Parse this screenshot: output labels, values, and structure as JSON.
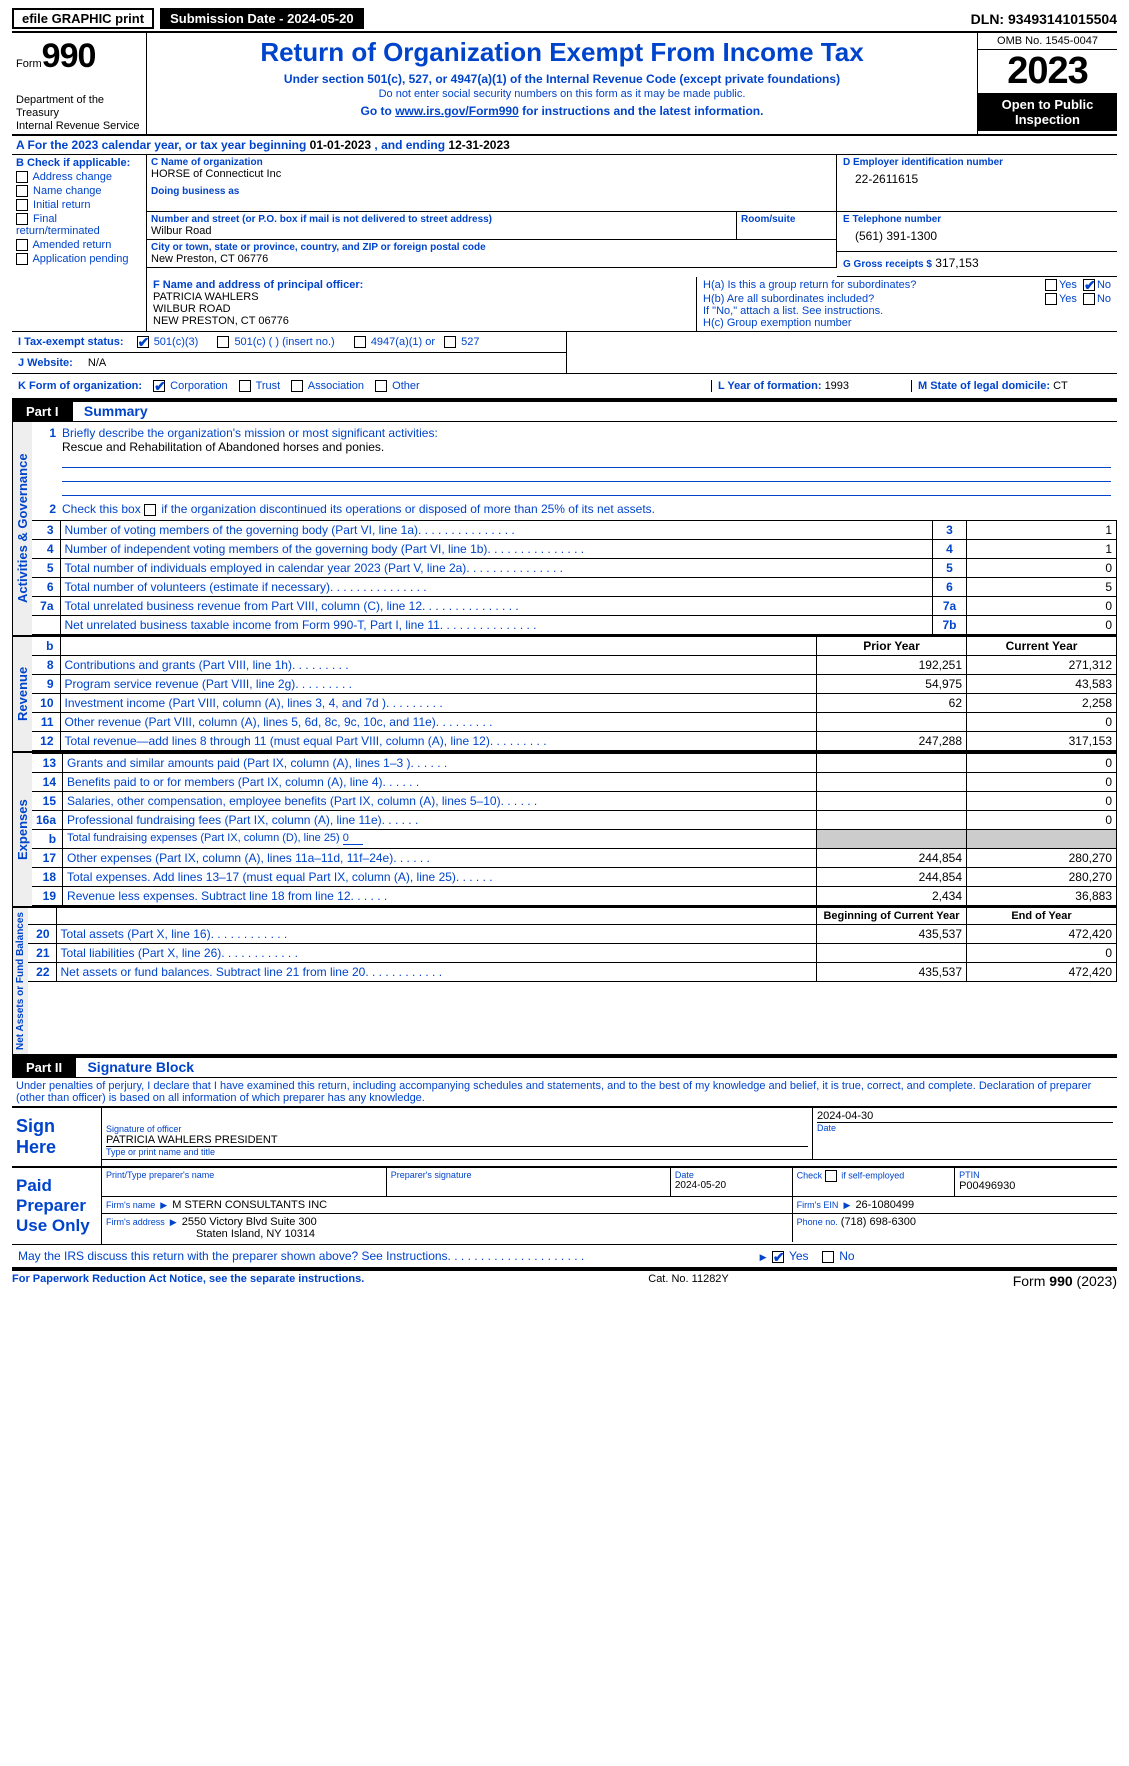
{
  "topbar": {
    "efile_label": "efile GRAPHIC print",
    "submission_label": "Submission Date - 2024-05-20",
    "dln_label": "DLN: 93493141015504"
  },
  "header": {
    "form_prefix": "Form",
    "form_no": "990",
    "dept": "Department of the Treasury\nInternal Revenue Service",
    "title": "Return of Organization Exempt From Income Tax",
    "sub": "Under section 501(c), 527, or 4947(a)(1) of the Internal Revenue Code (except private foundations)",
    "sub2": "Do not enter social security numbers on this form as it may be made public.",
    "go_prefix": "Go to ",
    "go_link": "www.irs.gov/Form990",
    "go_suffix": " for instructions and the latest information.",
    "omb": "OMB No. 1545-0047",
    "year": "2023",
    "open": "Open to Public Inspection"
  },
  "period": {
    "a_label": "A For the 2023 calendar year, or tax year beginning ",
    "begin": "01-01-2023",
    "mid": " , and ending ",
    "end": "12-31-2023"
  },
  "boxB": {
    "label": "B Check if applicable:",
    "items": [
      "Address change",
      "Name change",
      "Initial return",
      "Final return/terminated",
      "Amended return",
      "Application pending"
    ]
  },
  "boxC": {
    "name_label": "C Name of organization",
    "name": "HORSE of Connecticut Inc",
    "dba_label": "Doing business as",
    "dba": "",
    "street_label": "Number and street (or P.O. box if mail is not delivered to street address)",
    "street": "Wilbur Road",
    "room_label": "Room/suite",
    "city_label": "City or town, state or province, country, and ZIP or foreign postal code",
    "city": "New Preston, CT  06776"
  },
  "boxD": {
    "label": "D Employer identification number",
    "value": "22-2611615"
  },
  "boxE": {
    "label": "E Telephone number",
    "value": "(561) 391-1300"
  },
  "boxG": {
    "label": "G Gross receipts $",
    "value": "317,153"
  },
  "boxF": {
    "label": "F  Name and address of principal officer:",
    "name": "PATRICIA WAHLERS",
    "street": "WILBUR ROAD",
    "city": "NEW PRESTON, CT  06776"
  },
  "boxH": {
    "a_label": "H(a)  Is this a group return for subordinates?",
    "yes": "Yes",
    "no": "No",
    "b_label": "H(b)  Are all subordinates included?",
    "b_note": "If \"No,\" attach a list. See instructions.",
    "c_label": "H(c)  Group exemption number"
  },
  "taxexempt": {
    "label": "I  Tax-exempt status:",
    "c3": "501(c)(3)",
    "c": "501(c) (  ) (insert no.)",
    "a1": "4947(a)(1) or",
    "s527": "527"
  },
  "website": {
    "label": "J  Website:",
    "value": "N/A"
  },
  "boxK": {
    "label": "K Form of organization:",
    "opts": [
      "Corporation",
      "Trust",
      "Association",
      "Other"
    ]
  },
  "boxL": {
    "label": "L Year of formation: ",
    "value": "1993"
  },
  "boxM": {
    "label": "M State of legal domicile: ",
    "value": "CT"
  },
  "part1": {
    "hdr": "Part I",
    "title": "Summary",
    "l1_label": "Briefly describe the organization's mission or most significant activities:",
    "l1_text": "Rescue and Rehabilitation of Abandoned horses and ponies.",
    "l2_label": "Check this box ",
    "l2_suffix": " if the organization discontinued its operations or disposed of more than 25% of its net assets.",
    "rows_governance": [
      {
        "n": "3",
        "d": "Number of voting members of the governing body (Part VI, line 1a)",
        "box": "3",
        "v": "1"
      },
      {
        "n": "4",
        "d": "Number of independent voting members of the governing body (Part VI, line 1b)",
        "box": "4",
        "v": "1"
      },
      {
        "n": "5",
        "d": "Total number of individuals employed in calendar year 2023 (Part V, line 2a)",
        "box": "5",
        "v": "0"
      },
      {
        "n": "6",
        "d": "Total number of volunteers (estimate if necessary)",
        "box": "6",
        "v": "5"
      },
      {
        "n": "7a",
        "d": "Total unrelated business revenue from Part VIII, column (C), line 12",
        "box": "7a",
        "v": "0"
      },
      {
        "n": "",
        "d": "Net unrelated business taxable income from Form 990-T, Part I, line 11",
        "box": "7b",
        "v": "0"
      }
    ],
    "col_b": "b",
    "prior": "Prior Year",
    "current": "Current Year",
    "rows_revenue": [
      {
        "n": "8",
        "d": "Contributions and grants (Part VIII, line 1h)",
        "p": "192,251",
        "c": "271,312"
      },
      {
        "n": "9",
        "d": "Program service revenue (Part VIII, line 2g)",
        "p": "54,975",
        "c": "43,583"
      },
      {
        "n": "10",
        "d": "Investment income (Part VIII, column (A), lines 3, 4, and 7d )",
        "p": "62",
        "c": "2,258"
      },
      {
        "n": "11",
        "d": "Other revenue (Part VIII, column (A), lines 5, 6d, 8c, 9c, 10c, and 11e)",
        "p": "",
        "c": "0"
      },
      {
        "n": "12",
        "d": "Total revenue—add lines 8 through 11 (must equal Part VIII, column (A), line 12)",
        "p": "247,288",
        "c": "317,153"
      }
    ],
    "rows_expenses": [
      {
        "n": "13",
        "d": "Grants and similar amounts paid (Part IX, column (A), lines 1–3 )",
        "p": "",
        "c": "0"
      },
      {
        "n": "14",
        "d": "Benefits paid to or for members (Part IX, column (A), line 4)",
        "p": "",
        "c": "0"
      },
      {
        "n": "15",
        "d": "Salaries, other compensation, employee benefits (Part IX, column (A), lines 5–10)",
        "p": "",
        "c": "0"
      },
      {
        "n": "16a",
        "d": "Professional fundraising fees (Part IX, column (A), line 11e)",
        "p": "",
        "c": "0"
      }
    ],
    "row_16b_n": "b",
    "row_16b_d": "Total fundraising expenses (Part IX, column (D), line 25)",
    "row_16b_v": "0",
    "rows_expenses2": [
      {
        "n": "17",
        "d": "Other expenses (Part IX, column (A), lines 11a–11d, 11f–24e)",
        "p": "244,854",
        "c": "280,270"
      },
      {
        "n": "18",
        "d": "Total expenses. Add lines 13–17 (must equal Part IX, column (A), line 25)",
        "p": "244,854",
        "c": "280,270"
      },
      {
        "n": "19",
        "d": "Revenue less expenses. Subtract line 18 from line 12",
        "p": "2,434",
        "c": "36,883"
      }
    ],
    "begin": "Beginning of Current Year",
    "end": "End of Year",
    "rows_net": [
      {
        "n": "20",
        "d": "Total assets (Part X, line 16)",
        "p": "435,537",
        "c": "472,420"
      },
      {
        "n": "21",
        "d": "Total liabilities (Part X, line 26)",
        "p": "",
        "c": "0"
      },
      {
        "n": "22",
        "d": "Net assets or fund balances. Subtract line 21 from line 20",
        "p": "435,537",
        "c": "472,420"
      }
    ],
    "vtab_gov": "Activities & Governance",
    "vtab_rev": "Revenue",
    "vtab_exp": "Expenses",
    "vtab_net": "Net Assets or Fund Balances"
  },
  "part2": {
    "hdr": "Part II",
    "title": "Signature Block",
    "decl": "Under penalties of perjury, I declare that I have examined this return, including accompanying schedules and statements, and to the best of my knowledge and belief, it is true, correct, and complete. Declaration of preparer (other than officer) is based on all information of which preparer has any knowledge.",
    "sign_here": "Sign Here",
    "sig_officer": "Signature of officer",
    "officer": "PATRICIA WAHLERS PRESIDENT",
    "type_name": "Type or print name and title",
    "date_label": "Date",
    "date1": "2024-04-30",
    "paid": "Paid Preparer Use Only",
    "prep_name_label": "Print/Type preparer's name",
    "prep_sig_label": "Preparer's signature",
    "prep_date": "2024-05-20",
    "check_self": "Check          if self-employed",
    "ptin_label": "PTIN",
    "ptin": "P00496930",
    "firm_name_label": "Firm's name",
    "firm_name": "M STERN CONSULTANTS INC",
    "firm_ein_label": "Firm's EIN",
    "firm_ein": "26-1080499",
    "firm_addr_label": "Firm's address",
    "firm_addr1": "2550 Victory Blvd Suite 300",
    "firm_addr2": "Staten Island, NY  10314",
    "firm_phone_label": "Phone no.",
    "firm_phone": "(718) 698-6300",
    "discuss": "May the IRS discuss this return with the preparer shown above? See Instructions.",
    "yes": "Yes",
    "no": "No"
  },
  "footer": {
    "pra": "For Paperwork Reduction Act Notice, see the separate instructions.",
    "cat": "Cat. No. 11282Y",
    "form": "Form ",
    "formno": "990",
    "formyr": " (2023)"
  }
}
